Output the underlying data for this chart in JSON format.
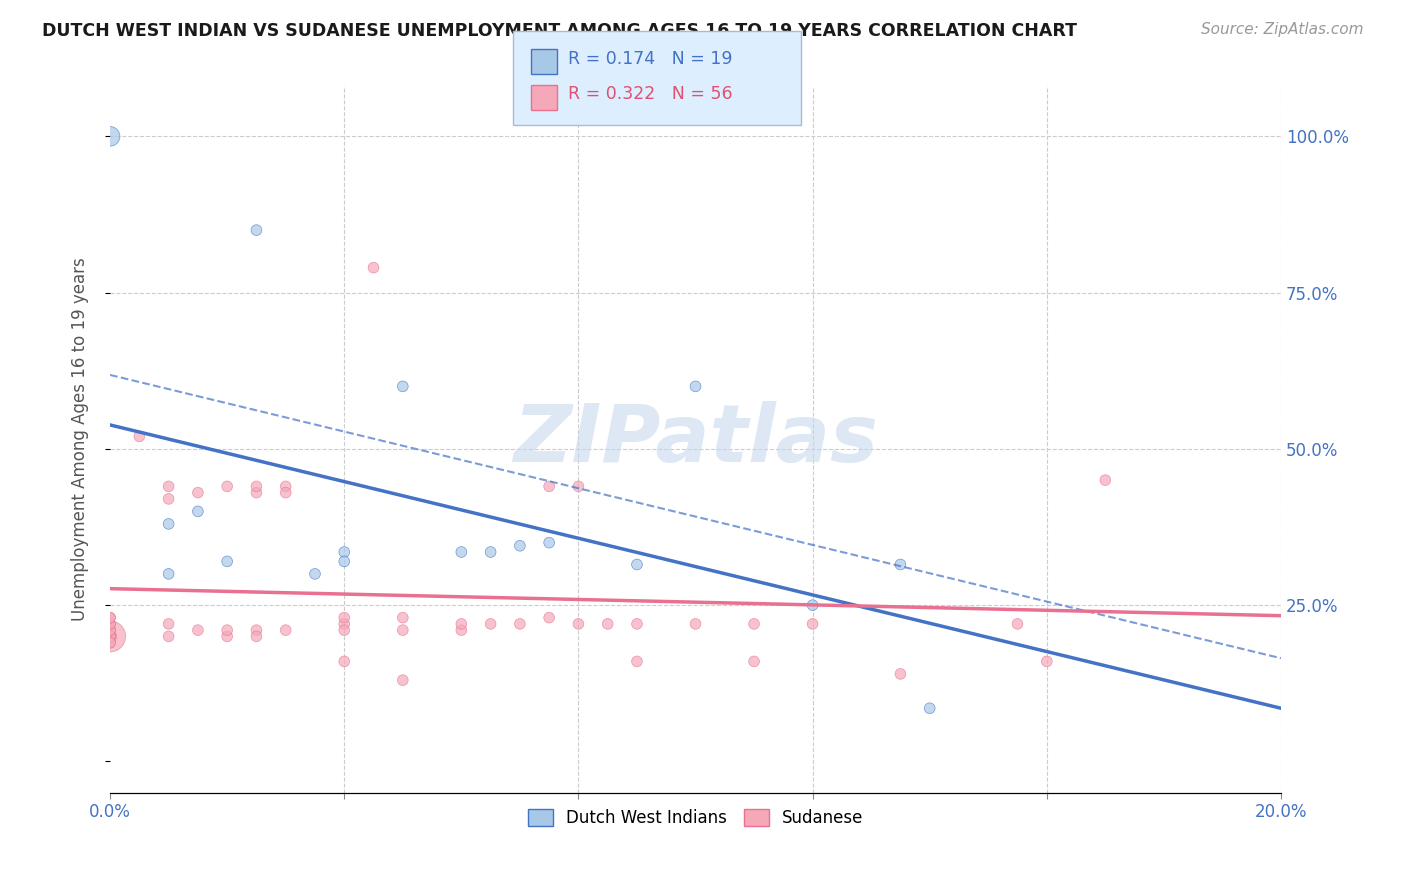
{
  "title": "DUTCH WEST INDIAN VS SUDANESE UNEMPLOYMENT AMONG AGES 16 TO 19 YEARS CORRELATION CHART",
  "source": "Source: ZipAtlas.com",
  "ylabel": "Unemployment Among Ages 16 to 19 years",
  "xlim": [
    0.0,
    0.2
  ],
  "ylim": [
    -0.05,
    1.08
  ],
  "r_blue": 0.174,
  "n_blue": 19,
  "r_pink": 0.322,
  "n_pink": 56,
  "blue_color": "#a8c8e8",
  "pink_color": "#f4a8b8",
  "blue_line_color": "#4472c4",
  "pink_line_color": "#e87090",
  "legend_box_color": "#ddeeff",
  "watermark_color": "#c8d8ee",
  "blue_scatter_x": [
    0.0,
    0.01,
    0.01,
    0.015,
    0.02,
    0.025,
    0.035,
    0.04,
    0.04,
    0.05,
    0.06,
    0.065,
    0.07,
    0.075,
    0.09,
    0.1,
    0.12,
    0.135,
    0.14
  ],
  "blue_scatter_y": [
    1.0,
    0.38,
    0.3,
    0.4,
    0.32,
    0.85,
    0.3,
    0.335,
    0.32,
    0.6,
    0.335,
    0.335,
    0.345,
    0.35,
    0.315,
    0.6,
    0.25,
    0.315,
    0.085
  ],
  "blue_scatter_size": [
    200,
    60,
    60,
    60,
    60,
    60,
    60,
    60,
    60,
    60,
    60,
    60,
    60,
    60,
    60,
    60,
    60,
    60,
    60
  ],
  "pink_scatter_x": [
    0.0,
    0.0,
    0.0,
    0.0,
    0.0,
    0.0,
    0.0,
    0.0,
    0.0,
    0.0,
    0.0,
    0.0,
    0.005,
    0.01,
    0.01,
    0.01,
    0.01,
    0.015,
    0.015,
    0.02,
    0.02,
    0.02,
    0.025,
    0.025,
    0.025,
    0.025,
    0.03,
    0.03,
    0.03,
    0.04,
    0.04,
    0.04,
    0.04,
    0.045,
    0.05,
    0.05,
    0.05,
    0.06,
    0.06,
    0.065,
    0.07,
    0.075,
    0.075,
    0.08,
    0.08,
    0.085,
    0.09,
    0.09,
    0.1,
    0.11,
    0.11,
    0.12,
    0.135,
    0.155,
    0.16,
    0.17
  ],
  "pink_scatter_y": [
    0.2,
    0.2,
    0.2,
    0.2,
    0.21,
    0.21,
    0.22,
    0.22,
    0.23,
    0.23,
    0.19,
    0.19,
    0.52,
    0.2,
    0.44,
    0.22,
    0.42,
    0.21,
    0.43,
    0.44,
    0.2,
    0.21,
    0.21,
    0.43,
    0.2,
    0.44,
    0.21,
    0.44,
    0.43,
    0.22,
    0.23,
    0.21,
    0.16,
    0.79,
    0.21,
    0.23,
    0.13,
    0.21,
    0.22,
    0.22,
    0.22,
    0.23,
    0.44,
    0.22,
    0.44,
    0.22,
    0.22,
    0.16,
    0.22,
    0.22,
    0.16,
    0.22,
    0.14,
    0.22,
    0.16,
    0.45
  ],
  "pink_scatter_size": [
    500,
    90,
    60,
    60,
    60,
    60,
    60,
    60,
    60,
    60,
    60,
    60,
    60,
    60,
    60,
    60,
    60,
    60,
    60,
    60,
    60,
    60,
    60,
    60,
    60,
    60,
    60,
    60,
    60,
    60,
    60,
    60,
    60,
    60,
    60,
    60,
    60,
    60,
    60,
    60,
    60,
    60,
    60,
    60,
    60,
    60,
    60,
    60,
    60,
    60,
    60,
    60,
    60,
    60,
    60,
    60
  ]
}
